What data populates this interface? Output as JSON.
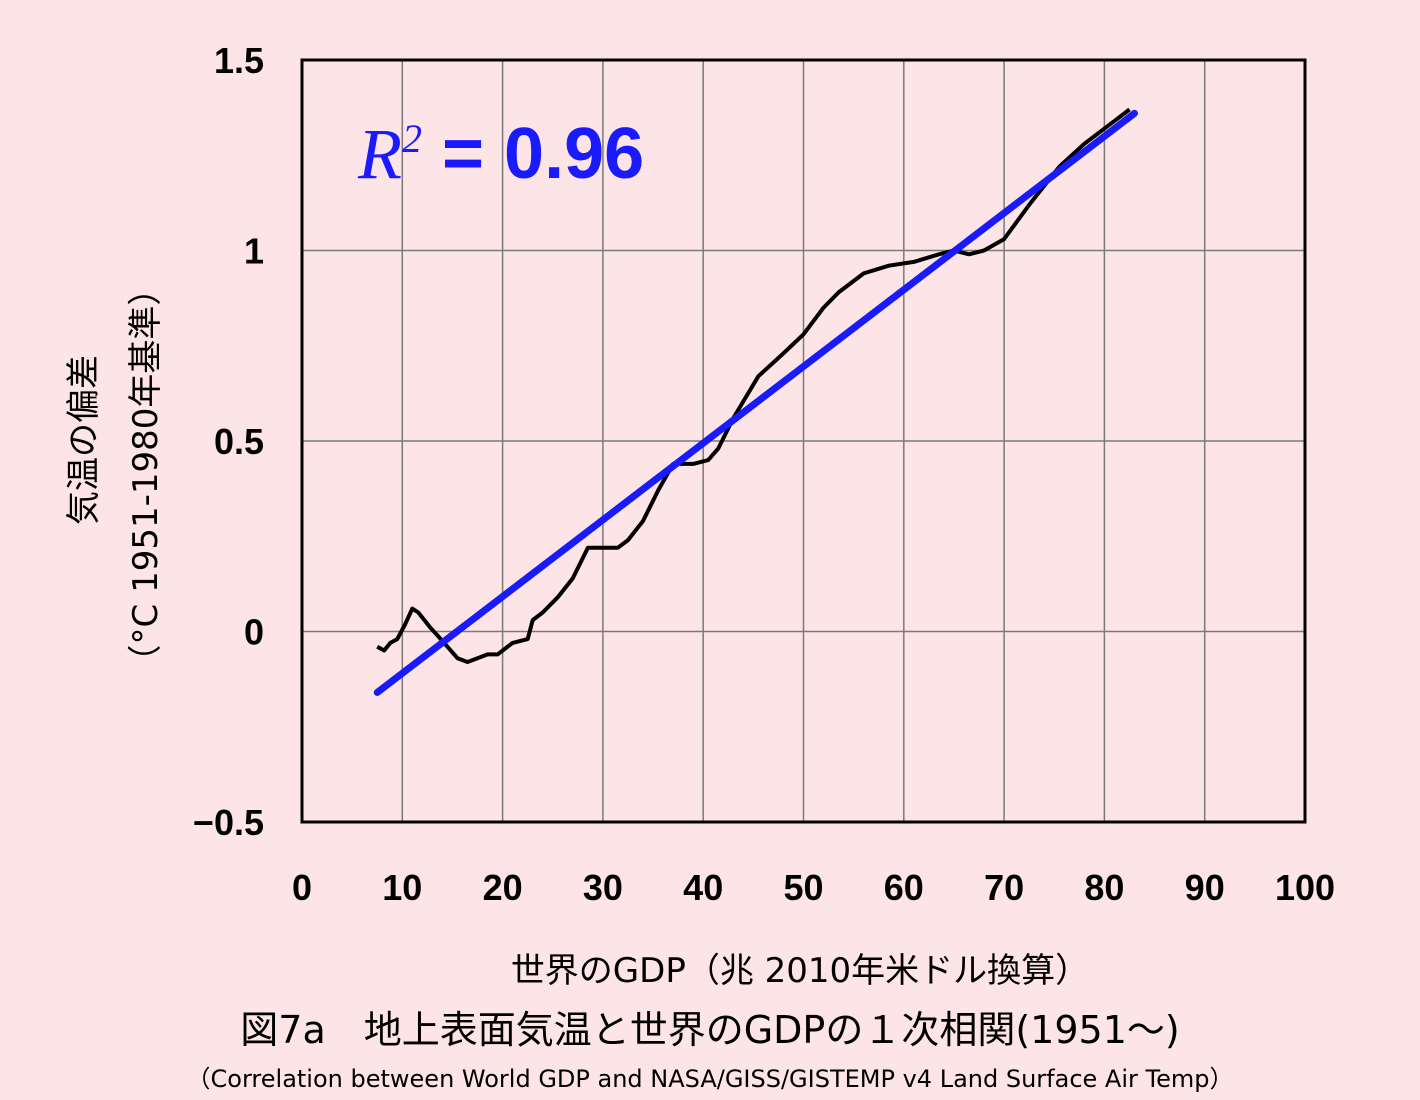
{
  "chart_data": {
    "type": "line",
    "xlabel": "世界のGDP（兆 2010年米ドル換算）",
    "ylabel_line1": "気温の偏差",
    "ylabel_line2": "（°C 1951-1980年基準）",
    "xlim": [
      0,
      100
    ],
    "ylim": [
      -0.5,
      1.5
    ],
    "xticks": [
      0,
      10,
      20,
      30,
      40,
      50,
      60,
      70,
      80,
      90,
      100
    ],
    "yticks": [
      {
        "value": -0.5,
        "label": "−0.5"
      },
      {
        "value": 0,
        "label": "0"
      },
      {
        "value": 0.5,
        "label": "0.5"
      },
      {
        "value": 1,
        "label": "1"
      },
      {
        "value": 1.5,
        "label": "1.5"
      }
    ],
    "grid": true,
    "annotation": {
      "symbol": "R",
      "superscript": "2",
      "text": " = 0.96"
    },
    "colors": {
      "data_line": "#000000",
      "fit_line": "#1a1aff",
      "background": "#fde4e7"
    },
    "series": [
      {
        "x": [
          7.5,
          8.2,
          8.8,
          9.5,
          10.3,
          11.0,
          11.6,
          12.2,
          12.8,
          13.5,
          14.5,
          15.5,
          16.5,
          17.5,
          18.5,
          19.5,
          20.5,
          21.0,
          22.5,
          23.0,
          24.0,
          25.5,
          27.0,
          28.5,
          30.5,
          31.5,
          32.5,
          34.0,
          35.5,
          37.0,
          39.0,
          40.5,
          41.5,
          43.0,
          45.5,
          48.0,
          50.0,
          52.0,
          53.5,
          56.0,
          58.5,
          61.0,
          63.5,
          65.0,
          66.5,
          68.0,
          70.0,
          72.5,
          75.5,
          78.0,
          80.5,
          82.5
        ],
        "y": [
          -0.04,
          -0.05,
          -0.03,
          -0.02,
          0.02,
          0.06,
          0.05,
          0.03,
          0.01,
          -0.01,
          -0.04,
          -0.07,
          -0.08,
          -0.07,
          -0.06,
          -0.06,
          -0.04,
          -0.03,
          -0.02,
          0.03,
          0.05,
          0.09,
          0.14,
          0.22,
          0.22,
          0.22,
          0.24,
          0.29,
          0.37,
          0.44,
          0.44,
          0.45,
          0.48,
          0.56,
          0.67,
          0.73,
          0.78,
          0.85,
          0.89,
          0.94,
          0.96,
          0.97,
          0.99,
          1.0,
          0.99,
          1.0,
          1.03,
          1.12,
          1.22,
          1.28,
          1.33,
          1.37
        ]
      },
      {
        "x": [
          7.5,
          83.0
        ],
        "y": [
          -0.16,
          1.36
        ]
      }
    ]
  },
  "caption": "図7a　地上表面気温と世界のGDPの１次相関(1951〜)",
  "subcaption": "（Correlation between World GDP and NASA/GISS/GISTEMP v4 Land Surface Air Temp）"
}
